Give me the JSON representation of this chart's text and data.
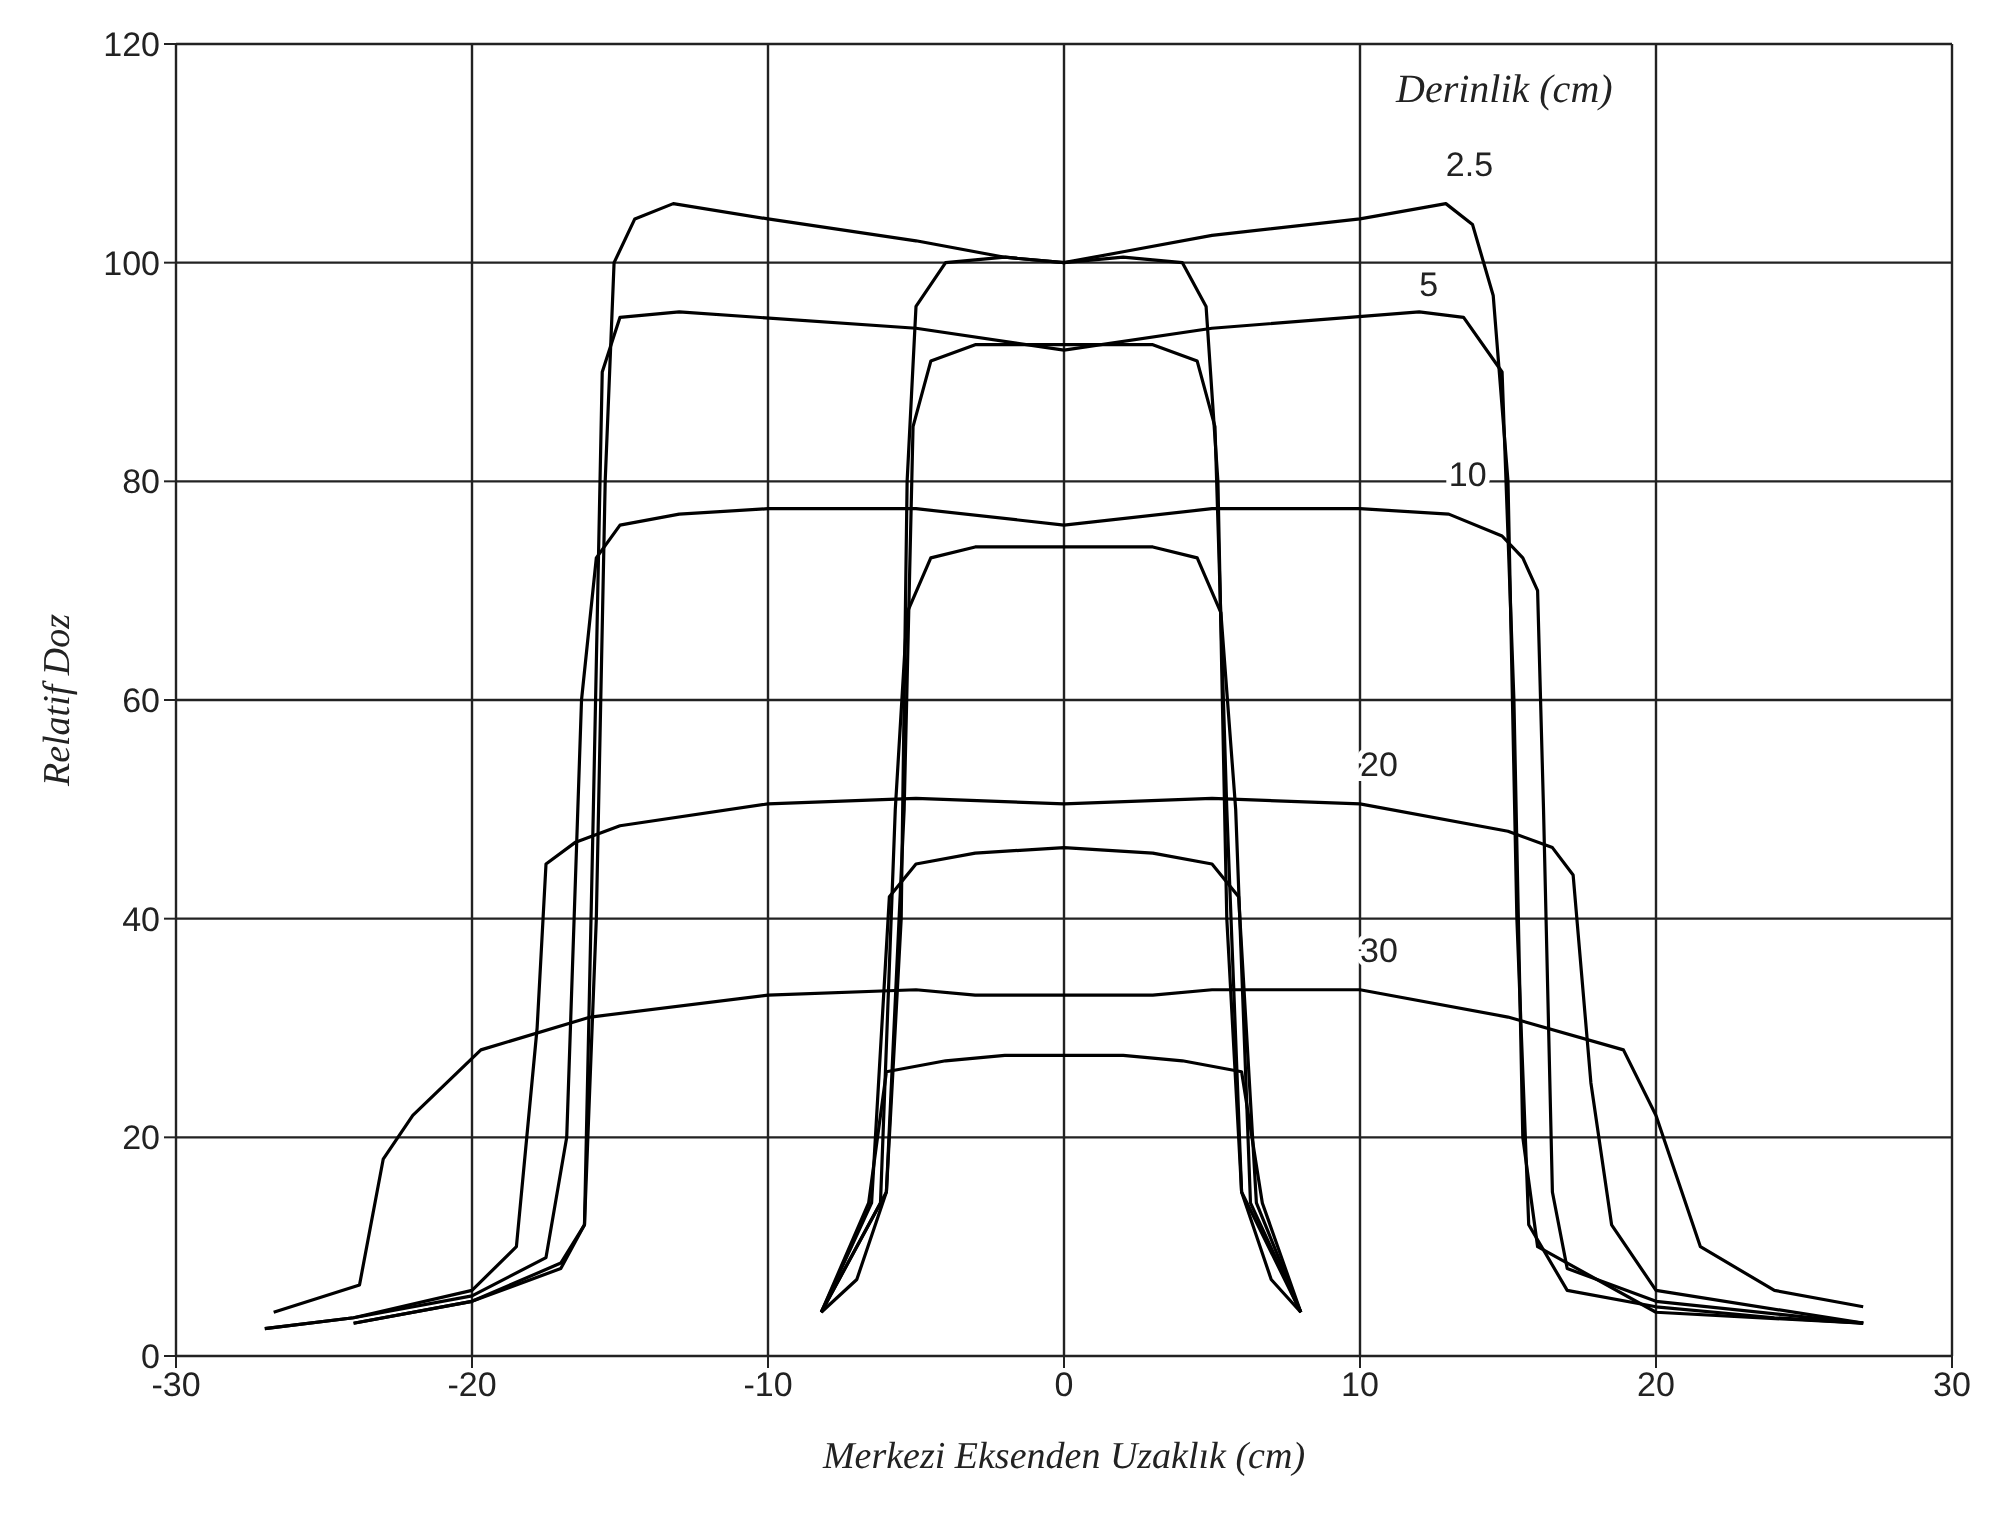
{
  "chart_data": {
    "type": "line",
    "xlabel": "Merkezi Eksenden Uzaklık (cm)",
    "ylabel": "Relatif Doz",
    "xlim": [
      -30,
      30
    ],
    "xticks": [
      -30,
      -20,
      -10,
      0,
      10,
      20,
      30
    ],
    "ylim": [
      0,
      120
    ],
    "yticks": [
      0,
      20,
      40,
      60,
      80,
      100,
      120
    ],
    "grid": true,
    "legend": false,
    "marker": "none",
    "line_style": "solid",
    "series": [
      {
        "name": "2.5",
        "color": "#000000",
        "x": [
          -24,
          -20,
          -17,
          -16.2,
          -15.8,
          -15.5,
          -15.2,
          -14.5,
          -13.2,
          -10,
          -5,
          -2,
          0,
          2,
          5,
          10,
          12.9,
          13.8,
          14.5,
          15,
          15.3,
          15.7,
          17,
          20,
          24,
          27
        ],
        "values": [
          3,
          5,
          8,
          12,
          40,
          80,
          100,
          104,
          105.4,
          104,
          102,
          100.5,
          100,
          101,
          102.5,
          104,
          105.4,
          103.5,
          97,
          80,
          40,
          12,
          6,
          4.5,
          3.5,
          3
        ]
      },
      {
        "name": "5",
        "color": "#000000",
        "x": [
          -24,
          -20,
          -17,
          -16.2,
          -15.9,
          -15.6,
          -15,
          -13,
          -5,
          0,
          5,
          12,
          13.5,
          14.8,
          15.2,
          15.5,
          16,
          20,
          27
        ],
        "values": [
          3,
          5,
          8.5,
          12,
          50,
          90,
          95,
          95.5,
          94,
          92,
          94,
          95.5,
          95,
          90,
          60,
          20,
          10,
          4,
          3
        ]
      },
      {
        "name": "10",
        "color": "#000000",
        "x": [
          -27,
          -24,
          -20,
          -17.5,
          -16.8,
          -16.3,
          -15.8,
          -15,
          -13,
          -10,
          -5,
          0,
          5,
          10,
          13,
          14.8,
          15.5,
          16,
          16.2,
          16.5,
          17,
          20,
          27
        ],
        "values": [
          2.5,
          3.5,
          5.5,
          9,
          20,
          60,
          73,
          76,
          77,
          77.5,
          77.5,
          76,
          77.5,
          77.5,
          77,
          75,
          73,
          70,
          50,
          15,
          8,
          5,
          3
        ]
      },
      {
        "name": "20",
        "color": "#000000",
        "x": [
          -27,
          -24,
          -20,
          -18.5,
          -17.8,
          -17.5,
          -16.5,
          -15,
          -10,
          -5,
          0,
          5,
          10,
          15,
          16.5,
          17.2,
          17.8,
          18.5,
          20,
          27
        ],
        "values": [
          2.5,
          3.5,
          6,
          10,
          30,
          45,
          47,
          48.5,
          50.5,
          51,
          50.5,
          51,
          50.5,
          48,
          46.5,
          44,
          25,
          12,
          6,
          3
        ]
      },
      {
        "name": "30",
        "color": "#000000",
        "x": [
          -26.7,
          -23.8,
          -23,
          -22,
          -19.7,
          -16,
          -10,
          -5,
          -3,
          0,
          3,
          5,
          10,
          15,
          18.9,
          20,
          21.5,
          24,
          27
        ],
        "values": [
          4,
          6.5,
          18,
          22,
          28,
          31,
          33,
          33.5,
          33,
          33,
          33,
          33.5,
          33.5,
          31,
          28,
          22,
          10,
          6,
          4.5
        ]
      },
      {
        "color": "#000000",
        "x": [
          -8.2,
          -7,
          -6,
          -5.5,
          -5.3,
          -5,
          -4,
          -2,
          0,
          2,
          4,
          4.8,
          5.2,
          5.5,
          6,
          7,
          8
        ],
        "values": [
          4,
          7,
          15,
          40,
          80,
          96,
          100,
          100.5,
          100,
          100.5,
          100,
          96,
          80,
          40,
          15,
          7,
          4
        ]
      },
      {
        "color": "#000000",
        "x": [
          -8.2,
          -6,
          -5.4,
          -5.1,
          -4.5,
          -3,
          0,
          3,
          4.5,
          5.1,
          5.5,
          6,
          8
        ],
        "values": [
          4,
          15,
          50,
          85,
          91,
          92.5,
          92.5,
          92.5,
          91,
          85,
          50,
          15,
          4
        ]
      },
      {
        "color": "#000000",
        "x": [
          -8.2,
          -6.2,
          -5.7,
          -5.3,
          -4.5,
          -3,
          0,
          3,
          4.5,
          5.3,
          5.8,
          6.3,
          8
        ],
        "values": [
          4,
          14,
          50,
          68,
          73,
          74,
          74,
          74,
          73,
          68,
          50,
          14,
          4
        ]
      },
      {
        "color": "#000000",
        "x": [
          -8.2,
          -6.5,
          -5.9,
          -5,
          -3,
          0,
          3,
          5,
          5.9,
          6.5,
          8
        ],
        "values": [
          4,
          14,
          42,
          45,
          46,
          46.5,
          46,
          45,
          42,
          14,
          4
        ]
      },
      {
        "color": "#000000",
        "x": [
          -8.2,
          -6.6,
          -6,
          -4,
          -2,
          0,
          2,
          4,
          6,
          6.7,
          8
        ],
        "values": [
          4,
          14,
          26,
          27,
          27.5,
          27.5,
          27.5,
          27,
          26,
          14,
          4
        ]
      }
    ],
    "annotations": [
      "Derinlik (cm)"
    ]
  }
}
